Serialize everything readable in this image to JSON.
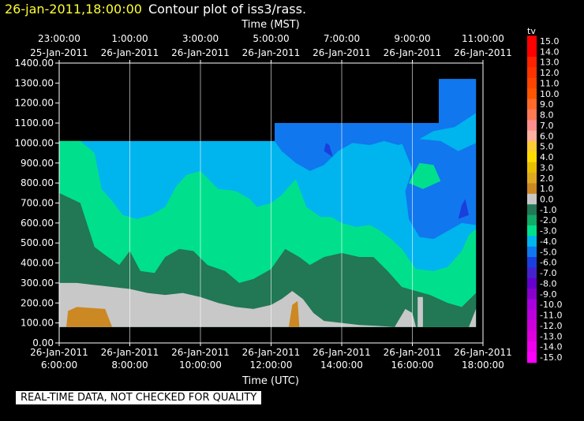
{
  "header": {
    "timestamp": "26-jan-2011,18:00:00",
    "title": "Contour plot of iss3/rass."
  },
  "notice": "REAL-TIME DATA, NOT CHECKED FOR QUALITY",
  "chart_data": {
    "type": "heatmap",
    "title": "Contour plot of iss3/rass.",
    "x_top_label": "Time (MST)",
    "x_bottom_label": "Time (UTC)",
    "x_range": [
      6.0,
      18.0
    ],
    "y_range": [
      0,
      1400
    ],
    "y_ticks": [
      "0.00",
      "100.00",
      "200.00",
      "300.00",
      "400.00",
      "500.00",
      "600.00",
      "700.00",
      "800.00",
      "900.00",
      "1000.00",
      "1100.00",
      "1200.00",
      "1300.00",
      "1400.00"
    ],
    "x_bottom_ticks": [
      {
        "x": 6,
        "date": "26-Jan-2011",
        "time": "6:00:00"
      },
      {
        "x": 8,
        "date": "26-Jan-2011",
        "time": "8:00:00"
      },
      {
        "x": 10,
        "date": "26-Jan-2011",
        "time": "10:00:00"
      },
      {
        "x": 12,
        "date": "26-Jan-2011",
        "time": "12:00:00"
      },
      {
        "x": 14,
        "date": "26-Jan-2011",
        "time": "14:00:00"
      },
      {
        "x": 16,
        "date": "26-Jan-2011",
        "time": "16:00:00"
      },
      {
        "x": 18,
        "date": "26-Jan-2011",
        "time": "18:00:00"
      }
    ],
    "x_top_ticks": [
      {
        "x": 6,
        "time": "23:00:00",
        "date": "25-Jan-2011"
      },
      {
        "x": 8,
        "time": "1:00:00",
        "date": "26-Jan-2011"
      },
      {
        "x": 10,
        "time": "3:00:00",
        "date": "26-Jan-2011"
      },
      {
        "x": 12,
        "time": "5:00:00",
        "date": "26-Jan-2011"
      },
      {
        "x": 14,
        "time": "7:00:00",
        "date": "26-Jan-2011"
      },
      {
        "x": 16,
        "time": "9:00:00",
        "date": "26-Jan-2011"
      },
      {
        "x": 18,
        "time": "11:00:00",
        "date": "26-Jan-2011"
      }
    ],
    "grid": "vertical",
    "colorbar": {
      "label": "tv",
      "levels": [
        "15.0",
        "14.0",
        "13.0",
        "12.0",
        "11.0",
        "10.0",
        "9.0",
        "8.0",
        "7.0",
        "6.0",
        "5.0",
        "4.0",
        "3.0",
        "2.0",
        "1.0",
        "0.0",
        "-1.0",
        "-2.0",
        "-3.0",
        "-4.0",
        "-5.0",
        "-6.0",
        "-7.0",
        "-8.0",
        "-9.0",
        "-10.0",
        "-11.0",
        "-12.0",
        "-13.0",
        "-14.0",
        "-15.0"
      ],
      "colors": [
        "#ff0000",
        "#ff0000",
        "#ff2200",
        "#ff3300",
        "#ff4400",
        "#ff5500",
        "#ff6a2a",
        "#ff7a55",
        "#ff8f8f",
        "#ffb0a0",
        "#ffcc33",
        "#ffdd00",
        "#e8c000",
        "#ddaa22",
        "#cc8822",
        "#c8c8c8",
        "#227755",
        "#11aa66",
        "#00e08c",
        "#00b4ee",
        "#1177ee",
        "#1a3fdd",
        "#4422cc",
        "#6600cc",
        "#8800cc",
        "#aa00dd",
        "#bb00dd",
        "#cc00dd",
        "#dd00dd",
        "#ee00ee",
        "#ff00ff"
      ]
    },
    "regions": [
      {
        "name": "light-blue-layer",
        "color": "#00b4ee",
        "points": [
          [
            6,
            1010
          ],
          [
            12.1,
            1010
          ],
          [
            12.1,
            1100
          ],
          [
            16.75,
            1100
          ],
          [
            16.75,
            1320
          ],
          [
            17.8,
            1320
          ],
          [
            17.8,
            80
          ],
          [
            6,
            80
          ]
        ]
      },
      {
        "name": "blue-top",
        "color": "#1177ee",
        "points": [
          [
            12.1,
            1100
          ],
          [
            16.75,
            1100
          ],
          [
            16.75,
            1320
          ],
          [
            17.8,
            1320
          ],
          [
            17.8,
            1150
          ],
          [
            17.2,
            1080
          ],
          [
            16.6,
            1060
          ],
          [
            16.2,
            1020
          ],
          [
            15.6,
            990
          ],
          [
            15.2,
            1010
          ],
          [
            14.8,
            990
          ],
          [
            14.3,
            1000
          ],
          [
            13.9,
            960
          ],
          [
            13.5,
            890
          ],
          [
            13.1,
            860
          ],
          [
            12.7,
            900
          ],
          [
            12.3,
            960
          ],
          [
            12.1,
            1010
          ]
        ]
      },
      {
        "name": "blue-right",
        "color": "#1177ee",
        "points": [
          [
            15.7,
            1000
          ],
          [
            16.0,
            870
          ],
          [
            15.8,
            760
          ],
          [
            15.9,
            620
          ],
          [
            16.2,
            530
          ],
          [
            16.6,
            520
          ],
          [
            17.0,
            560
          ],
          [
            17.4,
            600
          ],
          [
            17.8,
            590
          ],
          [
            17.8,
            1000
          ],
          [
            17.3,
            960
          ],
          [
            16.8,
            1010
          ],
          [
            16.2,
            1020
          ]
        ]
      },
      {
        "name": "dark-blue-core",
        "color": "#1a3fdd",
        "points": [
          [
            13.5,
            960
          ],
          [
            13.75,
            930
          ],
          [
            13.65,
            990
          ],
          [
            13.55,
            1000
          ]
        ]
      },
      {
        "name": "dark-blue-right",
        "color": "#1a3fdd",
        "points": [
          [
            17.3,
            620
          ],
          [
            17.6,
            640
          ],
          [
            17.5,
            720
          ],
          [
            17.4,
            690
          ]
        ]
      },
      {
        "name": "mint-layer",
        "color": "#00e08c",
        "points": [
          [
            6,
            1010
          ],
          [
            6.6,
            1010
          ],
          [
            7.0,
            950
          ],
          [
            7.2,
            770
          ],
          [
            7.5,
            710
          ],
          [
            7.8,
            640
          ],
          [
            8.2,
            620
          ],
          [
            8.6,
            640
          ],
          [
            9.0,
            680
          ],
          [
            9.3,
            780
          ],
          [
            9.6,
            840
          ],
          [
            10.0,
            860
          ],
          [
            10.5,
            770
          ],
          [
            11.0,
            760
          ],
          [
            11.4,
            720
          ],
          [
            11.6,
            680
          ],
          [
            12.0,
            700
          ],
          [
            12.3,
            740
          ],
          [
            12.7,
            820
          ],
          [
            13.0,
            680
          ],
          [
            13.4,
            630
          ],
          [
            13.7,
            630
          ],
          [
            14.0,
            600
          ],
          [
            14.4,
            580
          ],
          [
            14.8,
            590
          ],
          [
            15.1,
            560
          ],
          [
            15.4,
            520
          ],
          [
            15.7,
            470
          ],
          [
            16.1,
            370
          ],
          [
            16.6,
            360
          ],
          [
            17.0,
            380
          ],
          [
            17.4,
            460
          ],
          [
            17.6,
            540
          ],
          [
            17.8,
            570
          ],
          [
            17.8,
            80
          ],
          [
            6,
            80
          ]
        ]
      },
      {
        "name": "mint-pocket",
        "color": "#00e08c",
        "points": [
          [
            15.9,
            800
          ],
          [
            16.3,
            770
          ],
          [
            16.8,
            810
          ],
          [
            16.6,
            890
          ],
          [
            16.2,
            900
          ]
        ]
      },
      {
        "name": "green-layer",
        "color": "#227755",
        "points": [
          [
            6,
            750
          ],
          [
            6.6,
            700
          ],
          [
            7.0,
            480
          ],
          [
            7.3,
            440
          ],
          [
            7.7,
            390
          ],
          [
            8.0,
            460
          ],
          [
            8.3,
            360
          ],
          [
            8.7,
            350
          ],
          [
            9.0,
            430
          ],
          [
            9.4,
            470
          ],
          [
            9.8,
            460
          ],
          [
            10.2,
            390
          ],
          [
            10.7,
            360
          ],
          [
            11.1,
            300
          ],
          [
            11.5,
            320
          ],
          [
            12.0,
            370
          ],
          [
            12.4,
            470
          ],
          [
            12.8,
            430
          ],
          [
            13.1,
            390
          ],
          [
            13.5,
            430
          ],
          [
            14.0,
            450
          ],
          [
            14.5,
            430
          ],
          [
            14.9,
            430
          ],
          [
            15.3,
            360
          ],
          [
            15.7,
            280
          ],
          [
            16.1,
            260
          ],
          [
            16.5,
            240
          ],
          [
            17.0,
            200
          ],
          [
            17.4,
            180
          ],
          [
            17.8,
            250
          ],
          [
            17.8,
            80
          ],
          [
            6,
            80
          ]
        ]
      },
      {
        "name": "gray-layer",
        "color": "#c8c8c8",
        "points": [
          [
            6,
            300
          ],
          [
            6.5,
            300
          ],
          [
            7.0,
            290
          ],
          [
            7.5,
            280
          ],
          [
            8.0,
            270
          ],
          [
            8.5,
            250
          ],
          [
            9.0,
            240
          ],
          [
            9.5,
            250
          ],
          [
            10.0,
            230
          ],
          [
            10.5,
            200
          ],
          [
            11.0,
            180
          ],
          [
            11.5,
            170
          ],
          [
            12.0,
            190
          ],
          [
            12.3,
            220
          ],
          [
            12.6,
            260
          ],
          [
            12.9,
            220
          ],
          [
            13.2,
            150
          ],
          [
            13.5,
            110
          ],
          [
            14.0,
            100
          ],
          [
            14.5,
            90
          ],
          [
            15.0,
            85
          ],
          [
            15.5,
            80
          ],
          [
            6,
            80
          ]
        ]
      },
      {
        "name": "gray-bottom-right",
        "color": "#c8c8c8",
        "points": [
          [
            15.5,
            80
          ],
          [
            15.8,
            170
          ],
          [
            16.0,
            150
          ],
          [
            16.1,
            80
          ]
        ]
      },
      {
        "name": "gray-spike",
        "color": "#c8c8c8",
        "points": [
          [
            16.15,
            80
          ],
          [
            16.15,
            230
          ],
          [
            16.3,
            230
          ],
          [
            16.3,
            80
          ]
        ]
      },
      {
        "name": "gray-edge",
        "color": "#c8c8c8",
        "points": [
          [
            17.6,
            80
          ],
          [
            17.8,
            170
          ],
          [
            17.8,
            80
          ]
        ]
      },
      {
        "name": "orange-left",
        "color": "#cc8822",
        "points": [
          [
            6.2,
            80
          ],
          [
            6.25,
            160
          ],
          [
            6.5,
            180
          ],
          [
            7.3,
            170
          ],
          [
            7.5,
            80
          ]
        ]
      },
      {
        "name": "orange-spike",
        "color": "#cc8822",
        "points": [
          [
            12.5,
            80
          ],
          [
            12.6,
            190
          ],
          [
            12.75,
            210
          ],
          [
            12.8,
            80
          ]
        ]
      }
    ]
  }
}
